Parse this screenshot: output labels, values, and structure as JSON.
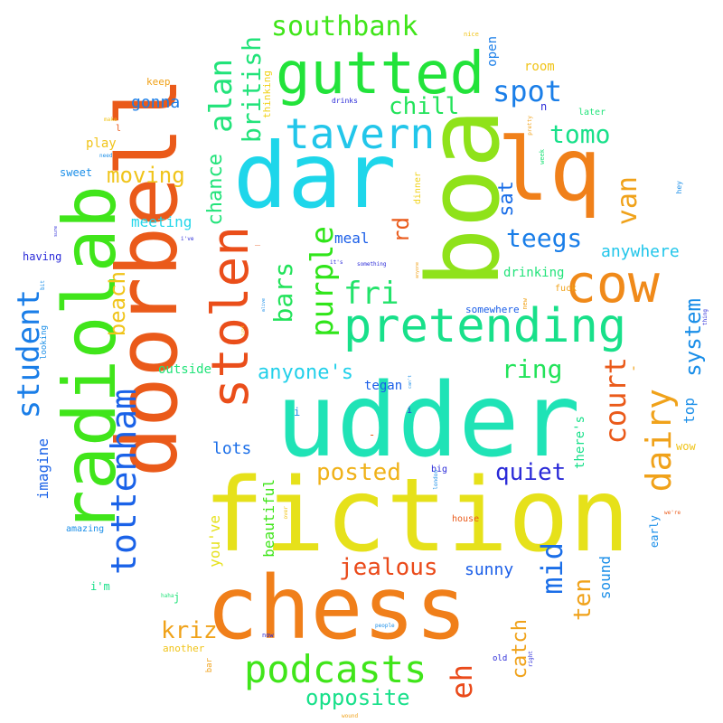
{
  "word_cloud": {
    "words": [
      {
        "text": "udder",
        "color": "#1fe3b6"
      },
      {
        "text": "fiction",
        "color": "#e6e11a"
      },
      {
        "text": "chess",
        "color": "#f07f1a"
      },
      {
        "text": "doorbell",
        "color": "#ea5a1a"
      },
      {
        "text": "dar",
        "color": "#1ed6ea"
      },
      {
        "text": "boa",
        "color": "#8fe21a"
      },
      {
        "text": "lq",
        "color": "#f0801a"
      },
      {
        "text": "radiolab",
        "color": "#40e51a"
      },
      {
        "text": "gutted",
        "color": "#22e33a"
      },
      {
        "text": "pretending",
        "color": "#18e08a"
      },
      {
        "text": "cow",
        "color": "#f08a1a"
      },
      {
        "text": "stolen",
        "color": "#ea4e1a"
      },
      {
        "text": "tavern",
        "color": "#22c6ea"
      },
      {
        "text": "podcasts",
        "color": "#40e51a"
      },
      {
        "text": "tottenham",
        "color": "#1a62e8"
      },
      {
        "text": "dairy",
        "color": "#f0a21a"
      },
      {
        "text": "fri",
        "color": "#22e36a"
      },
      {
        "text": "purple",
        "color": "#30e51a"
      },
      {
        "text": "alan",
        "color": "#22e37a"
      },
      {
        "text": "student",
        "color": "#1a7ee8"
      },
      {
        "text": "mid",
        "color": "#1a6ee8"
      },
      {
        "text": "court",
        "color": "#ea5a1a"
      },
      {
        "text": "eh",
        "color": "#ea4a1a"
      },
      {
        "text": "spot",
        "color": "#1a7ee8"
      },
      {
        "text": "southbank",
        "color": "#40e51a"
      },
      {
        "text": "van",
        "color": "#f0a21a"
      },
      {
        "text": "jealous",
        "color": "#ea4a1a"
      },
      {
        "text": "opposite",
        "color": "#18e08a"
      },
      {
        "text": "ring",
        "color": "#22e35a"
      },
      {
        "text": "posted",
        "color": "#f0b21a"
      },
      {
        "text": "quiet",
        "color": "#2a2ad8"
      },
      {
        "text": "teegs",
        "color": "#1a7ee8"
      },
      {
        "text": "tomo",
        "color": "#18e08a"
      },
      {
        "text": "bars",
        "color": "#22e35a"
      },
      {
        "text": "british",
        "color": "#22e37a"
      },
      {
        "text": "chill",
        "color": "#22e35a"
      },
      {
        "text": "moving",
        "color": "#f0c41a"
      },
      {
        "text": "system",
        "color": "#1a8ee8"
      },
      {
        "text": "anyone's",
        "color": "#22d0ea"
      },
      {
        "text": "ten",
        "color": "#f0a21a"
      },
      {
        "text": "kriz",
        "color": "#f0a21a"
      },
      {
        "text": "beach",
        "color": "#f0c41a"
      },
      {
        "text": "chance",
        "color": "#22e37a"
      },
      {
        "text": "rd",
        "color": "#ea5a1a"
      },
      {
        "text": "sat",
        "color": "#1a6ee8"
      },
      {
        "text": "catch",
        "color": "#f0a21a"
      },
      {
        "text": "sunny",
        "color": "#1a5ee8"
      },
      {
        "text": "lots",
        "color": "#1a6ee8"
      },
      {
        "text": "meal",
        "color": "#1a5ee8"
      },
      {
        "text": "anywhere",
        "color": "#22c6ea"
      },
      {
        "text": "imagine",
        "color": "#1a62e8"
      },
      {
        "text": "gonna",
        "color": "#1a7ee8"
      },
      {
        "text": "meeting",
        "color": "#22d6ea"
      },
      {
        "text": "top",
        "color": "#1a8ee8"
      },
      {
        "text": "beautiful",
        "color": "#40e51a"
      },
      {
        "text": "you've",
        "color": "#e6e11a"
      },
      {
        "text": "sound",
        "color": "#1a8ee8"
      },
      {
        "text": "outside",
        "color": "#22e37a"
      },
      {
        "text": "there's",
        "color": "#18e08a"
      },
      {
        "text": "tegan",
        "color": "#1a5ee8"
      },
      {
        "text": "drinking",
        "color": "#22e37a"
      },
      {
        "text": "room",
        "color": "#f0c41a"
      },
      {
        "text": "open",
        "color": "#1a7ee8"
      },
      {
        "text": "play",
        "color": "#f0c41a"
      },
      {
        "text": "keep",
        "color": "#f0a21a"
      },
      {
        "text": "thinking",
        "color": "#f0d21a"
      },
      {
        "text": "sweet",
        "color": "#1a8ee8"
      },
      {
        "text": "having",
        "color": "#2a2ad8"
      },
      {
        "text": "i'm",
        "color": "#18e08a"
      },
      {
        "text": "wow",
        "color": "#f0c41a"
      },
      {
        "text": "early",
        "color": "#1a8ee8"
      },
      {
        "text": "somewhere",
        "color": "#1a5ee8"
      },
      {
        "text": "another",
        "color": "#f0c41a"
      },
      {
        "text": "house",
        "color": "#ea5a1a"
      },
      {
        "text": "amazing",
        "color": "#1a8ee8"
      },
      {
        "text": "big",
        "color": "#2a2ad8"
      },
      {
        "text": "old",
        "color": "#2a2ad8"
      },
      {
        "text": "dinner",
        "color": "#f0d21a"
      },
      {
        "text": "later",
        "color": "#22e37a"
      },
      {
        "text": "fuck",
        "color": "#f0a21a"
      },
      {
        "text": "drinks",
        "color": "#2a2ad8"
      },
      {
        "text": "looking",
        "color": "#1a8ee8"
      },
      {
        "text": "bar",
        "color": "#f0a21a"
      },
      {
        "text": "nice",
        "color": "#f0c41a"
      },
      {
        "text": "hey",
        "color": "#1a8ee8"
      },
      {
        "text": "week",
        "color": "#22e37a"
      },
      {
        "text": "pretty",
        "color": "#f0a21a"
      },
      {
        "text": "something",
        "color": "#2a2ad8"
      },
      {
        "text": "n",
        "color": "#2a2ad8"
      },
      {
        "text": "new",
        "color": "#f0a21a"
      },
      {
        "text": "thing",
        "color": "#2a2ad8"
      },
      {
        "text": "london",
        "color": "#1a8ee8"
      },
      {
        "text": "we're",
        "color": "#ea5a1a"
      },
      {
        "text": "i've",
        "color": "#2a2ad8"
      },
      {
        "text": "it's",
        "color": "#2a2ad8"
      },
      {
        "text": "haha",
        "color": "#22e37a"
      },
      {
        "text": "people",
        "color": "#1a8ee8"
      },
      {
        "text": "need",
        "color": "#1a8ee8"
      },
      {
        "text": "bit",
        "color": "#1a8ee8"
      },
      {
        "text": "sure",
        "color": "#2a2ad8"
      },
      {
        "text": "make",
        "color": "#f0c41a"
      },
      {
        "text": "now",
        "color": "#2a2ad8"
      },
      {
        "text": "right",
        "color": "#2a2ad8"
      },
      {
        "text": "wound",
        "color": "#f0a21a"
      },
      {
        "text": "over",
        "color": "#f0c41a"
      },
      {
        "text": "anyone",
        "color": "#f0a21a"
      },
      {
        "text": "can't",
        "color": "#1a8ee8"
      },
      {
        "text": "alive",
        "color": "#1a8ee8"
      },
      {
        "text": "just",
        "color": "#f0c41a"
      },
      {
        "text": "i",
        "color": "#1a8ee8"
      },
      {
        "text": "l",
        "color": "#ea5a1a"
      },
      {
        "text": "j",
        "color": "#22e37a"
      },
      {
        "text": "i",
        "color": "#2a2ad8"
      },
      {
        "text": "-",
        "color": "#ea5a1a"
      },
      {
        "text": "'",
        "color": "#f0a21a"
      },
      {
        "text": "_",
        "color": "#ea5a1a"
      }
    ]
  }
}
